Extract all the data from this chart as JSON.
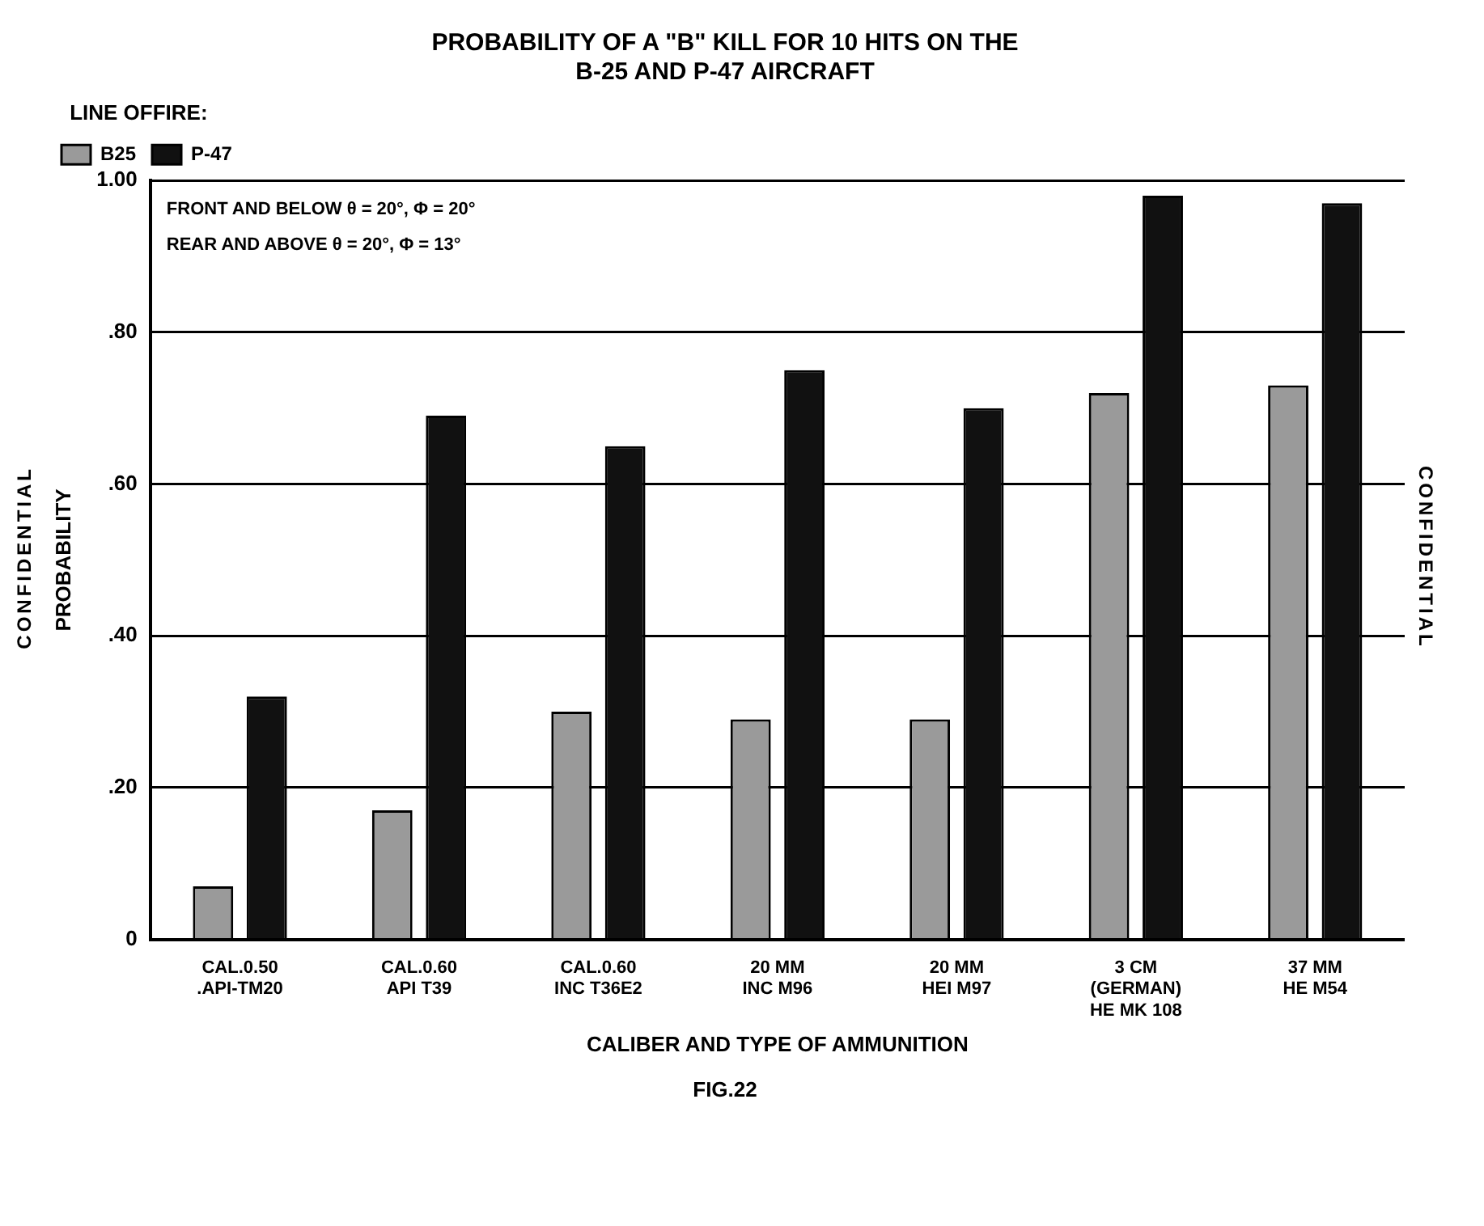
{
  "chart_data": {
    "type": "bar",
    "title": "PROBABILITY OF A \"B\" KILL FOR 10 HITS ON THE\nB-25 AND P-47 AIRCRAFT",
    "xlabel": "CALIBER AND TYPE OF AMMUNITION",
    "ylabel": "PROBABILITY",
    "legend_title": "LINE OFFIRE:",
    "categories": [
      "CAL.0.50\n.API-TM20",
      "CAL.0.60\nAPI T39",
      "CAL.0.60\nINC T36E2",
      "20 MM\nINC M96",
      "20 MM\nHEI M97",
      "3 CM\n(GERMAN)\nHE MK 108",
      "37 MM\nHE M54"
    ],
    "series": [
      {
        "name": "B25",
        "color": "#9a9a9a",
        "values": [
          0.07,
          0.17,
          0.3,
          0.29,
          0.29,
          0.72,
          0.73
        ]
      },
      {
        "name": "P-47",
        "color": "#111111",
        "values": [
          0.32,
          0.69,
          0.65,
          0.75,
          0.7,
          0.98,
          0.97
        ]
      }
    ],
    "ylim": [
      0,
      1
    ],
    "yticks": [
      0,
      {
        "value": 0.2,
        "label": ".20"
      },
      {
        "value": 0.4,
        "label": ".40"
      },
      {
        "value": 0.6,
        "label": ".60"
      },
      {
        "value": 0.8,
        "label": ".80"
      },
      {
        "value": 1,
        "label": "1.00"
      }
    ],
    "grid": "y",
    "legend": "top left",
    "annotations": [
      "FRONT AND BELOW θ = 20°, Φ = 20°",
      "REAR AND ABOVE θ = 20°, Φ = 13°",
      "FIG.22",
      "CONFIDENTIAL",
      "CONFIDENTIAL"
    ]
  }
}
